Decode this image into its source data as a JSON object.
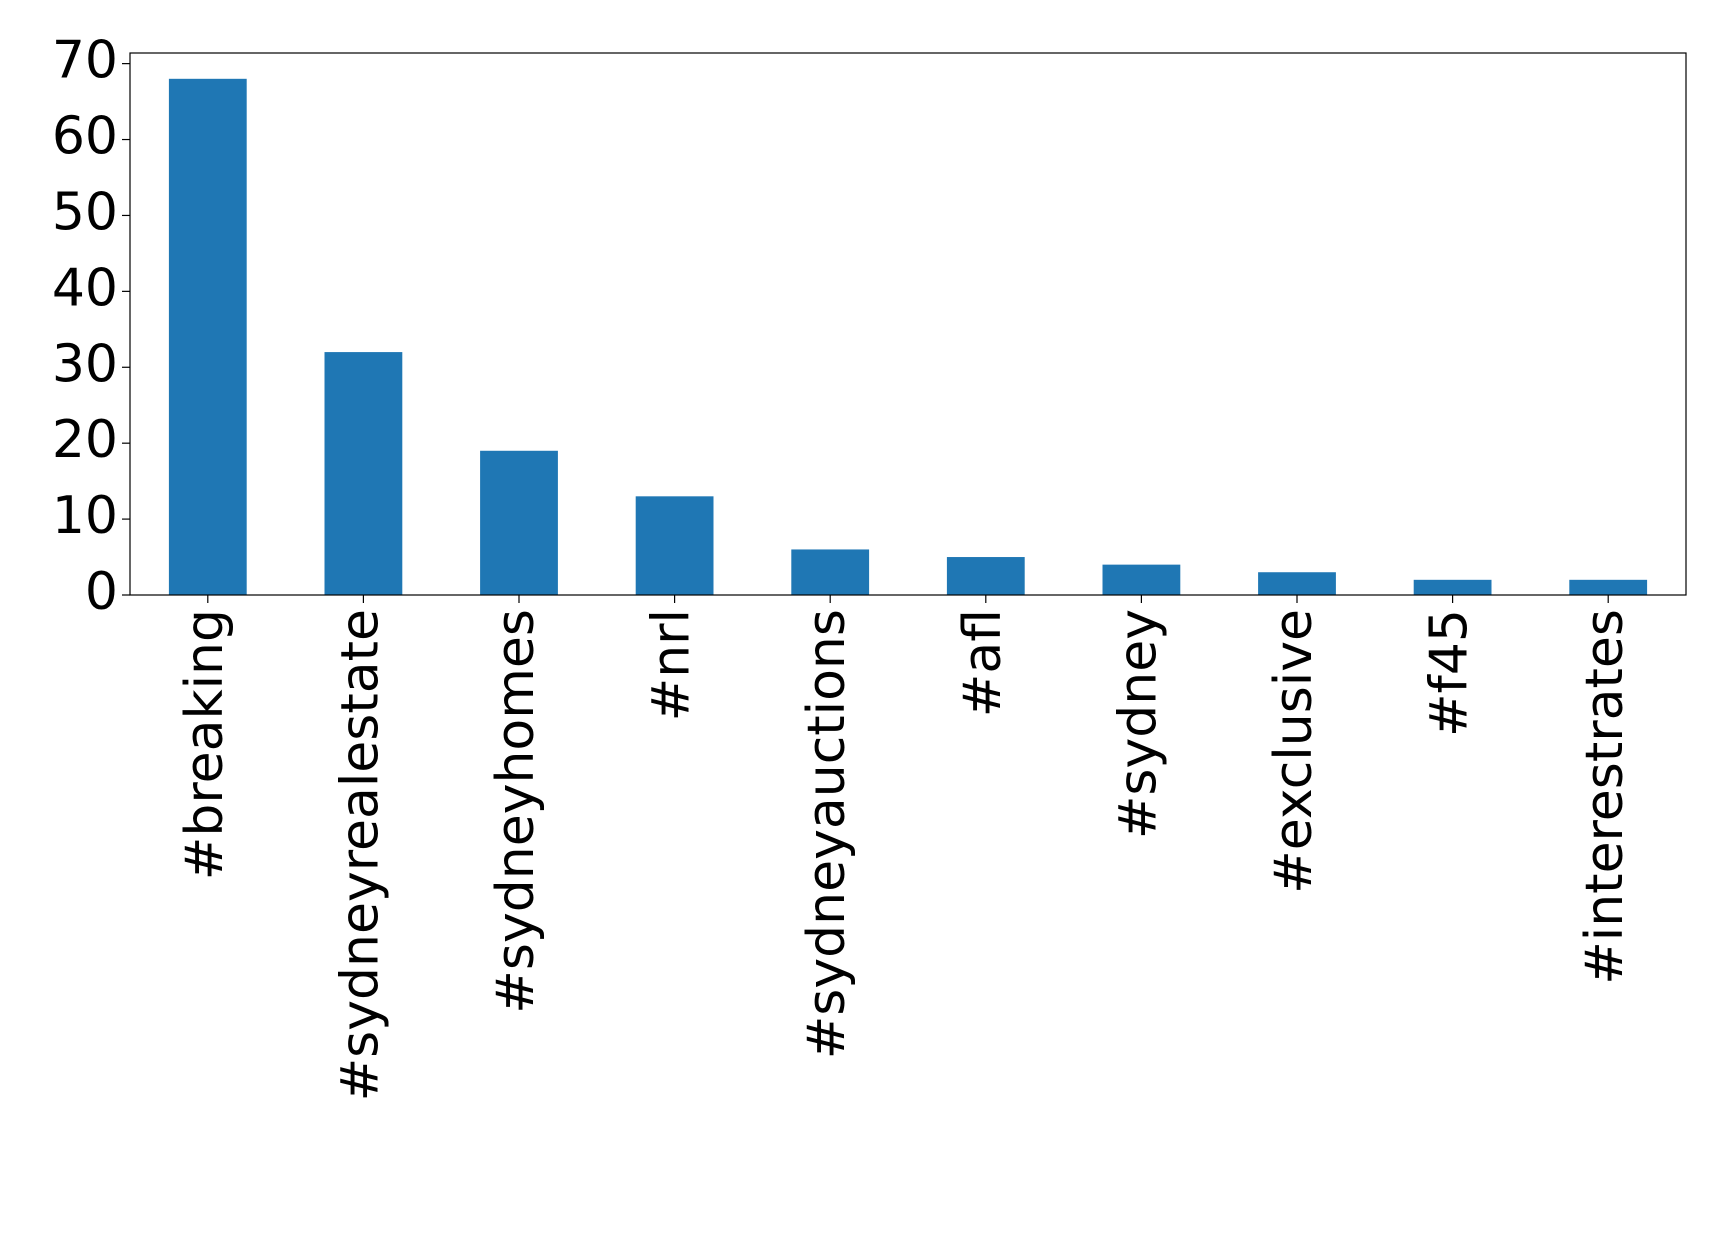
{
  "chart_data": {
    "type": "bar",
    "categories": [
      "#breaking",
      "#sydneyrealestate",
      "#sydneyhomes",
      "#nrl",
      "#sydneyauctions",
      "#afl",
      "#sydney",
      "#exclusive",
      "#f45",
      "#interestrates"
    ],
    "values": [
      68,
      32,
      19,
      13,
      6,
      5,
      4,
      3,
      2,
      2
    ],
    "color": "#1f77b4",
    "ylim": [
      0,
      71.4
    ],
    "yticks": [
      0,
      10,
      20,
      30,
      40,
      50,
      60,
      70
    ],
    "grid": false
  }
}
